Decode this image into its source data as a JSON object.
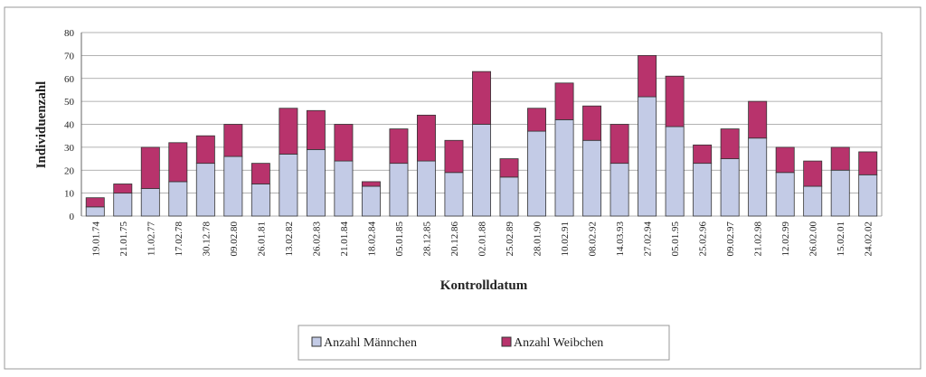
{
  "chart_data": {
    "type": "stacked_bar",
    "y_label": "Individuenzahl",
    "x_label": "Kontrolldatum",
    "categories": [
      "19.01.74",
      "21.01.75",
      "11.02.77",
      "17.02.78",
      "30.12.78",
      "09.02.80",
      "26.01.81",
      "13.02.82",
      "26.02.83",
      "21.01.84",
      "18.02.84",
      "05.01.85",
      "28.12.85",
      "20.12.86",
      "02.01.88",
      "25.02.89",
      "28.01.90",
      "10.02.91",
      "08.02.92",
      "14.03.93",
      "27.02.94",
      "05.01.95",
      "25.02.96",
      "09.02.97",
      "21.02.98",
      "12.02.99",
      "26.02.00",
      "15.02.01",
      "24.02.02"
    ],
    "series": [
      {
        "name": "Anzahl Männchen",
        "color": "#c3cbe6",
        "values": [
          4,
          10,
          12,
          15,
          23,
          26,
          14,
          27,
          29,
          24,
          13,
          23,
          24,
          19,
          40,
          17,
          37,
          42,
          33,
          23,
          52,
          39,
          23,
          25,
          34,
          19,
          13,
          20,
          18
        ]
      },
      {
        "name": "Anzahl Weibchen",
        "color": "#b8336c",
        "values": [
          4,
          4,
          18,
          17,
          12,
          14,
          9,
          20,
          17,
          16,
          2,
          15,
          20,
          14,
          23,
          8,
          10,
          16,
          15,
          17,
          18,
          22,
          8,
          13,
          16,
          11,
          11,
          10,
          10
        ]
      }
    ],
    "ylim": [
      0,
      80
    ],
    "yticks": [
      0,
      10,
      20,
      30,
      40,
      50,
      60,
      70,
      80
    ],
    "grid": true,
    "legend": "bottom"
  }
}
